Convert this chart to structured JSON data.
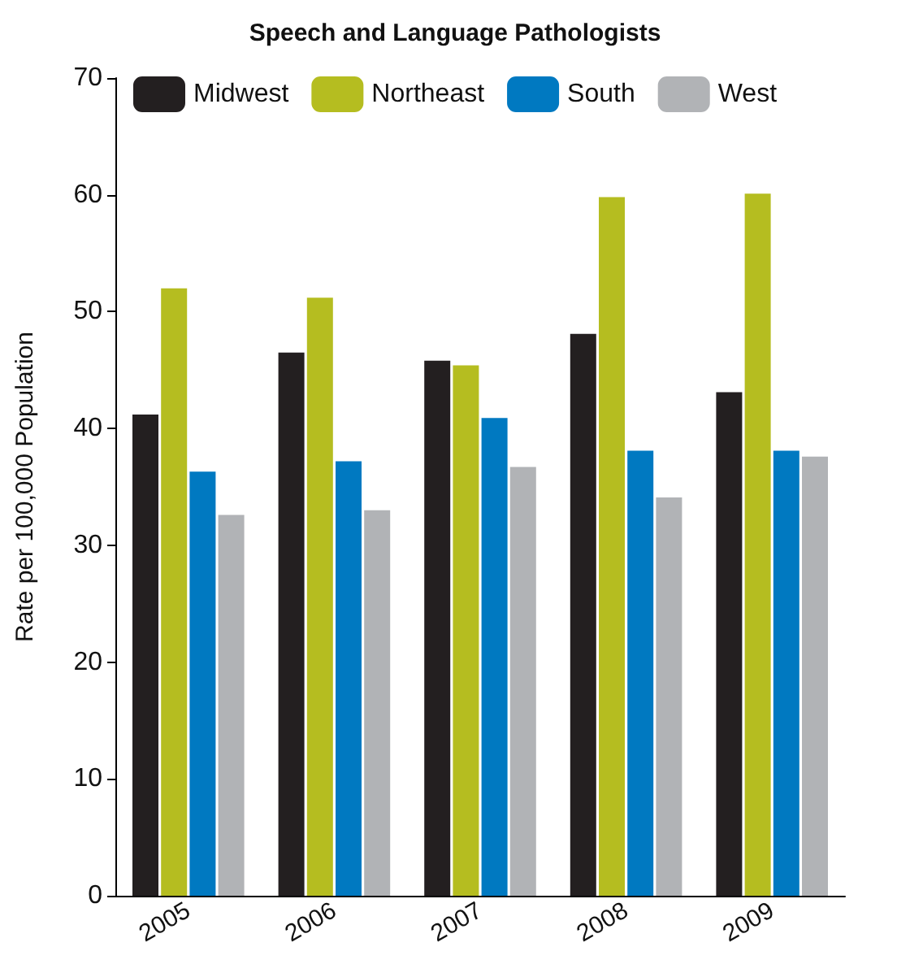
{
  "chart_data": {
    "type": "bar",
    "title": "Speech and Language Pathologists",
    "ylabel": "Rate per 100,000 Population",
    "categories": [
      "2005",
      "2006",
      "2007",
      "2008",
      "2009"
    ],
    "series": [
      {
        "name": "Midwest",
        "color": "#231f20",
        "values": [
          41.2,
          46.5,
          45.8,
          48.1,
          43.1
        ]
      },
      {
        "name": "Northeast",
        "color": "#b5bd20",
        "values": [
          52.0,
          51.2,
          45.4,
          59.8,
          60.1
        ]
      },
      {
        "name": "South",
        "color": "#0079c1",
        "values": [
          36.3,
          37.2,
          40.9,
          38.1,
          38.1
        ]
      },
      {
        "name": "West",
        "color": "#b1b3b6",
        "values": [
          32.6,
          33.0,
          36.7,
          34.1,
          37.6
        ]
      }
    ],
    "ylim": [
      0,
      70
    ],
    "yticks": [
      0,
      10,
      20,
      30,
      40,
      50,
      60,
      70
    ],
    "grid": false,
    "legend": "top"
  }
}
